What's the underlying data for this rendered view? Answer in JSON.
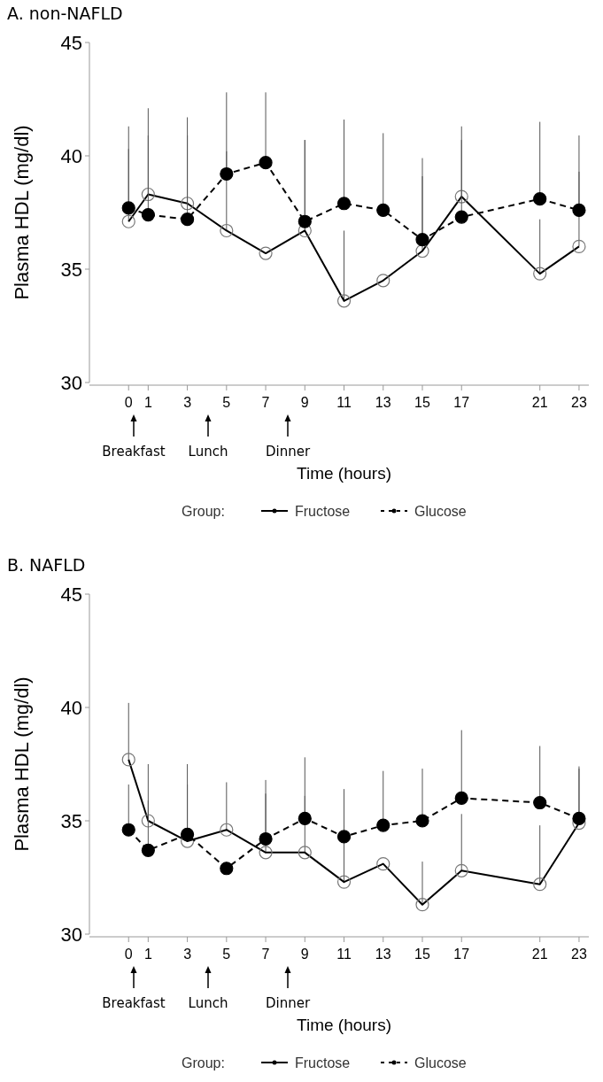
{
  "chart_data": [
    {
      "type": "line",
      "title": "A. non-NAFLD",
      "xlabel": "Time (hours)",
      "ylabel": "Plasma HDL (mg/dl)",
      "legend_title": "Group:",
      "legend": "bottom",
      "marker": "circle",
      "x": [
        0,
        1,
        3,
        5,
        7,
        9,
        11,
        13,
        15,
        17,
        21,
        23
      ],
      "xlim": [
        -2,
        23.5
      ],
      "xticks": [
        0,
        1,
        3,
        5,
        7,
        9,
        11,
        13,
        15,
        17,
        21,
        23
      ],
      "ylim": [
        30,
        45
      ],
      "yticks": [
        30,
        35,
        40,
        45
      ],
      "annotations": [
        "Breakfast",
        "Lunch",
        "Dinner"
      ],
      "series": [
        {
          "name": "Fructose",
          "color": "#000000",
          "line_style": "solid",
          "values": [
            37.1,
            38.3,
            37.9,
            36.7,
            35.7,
            36.7,
            33.6,
            34.5,
            35.8,
            38.2,
            34.8,
            36.0
          ],
          "errors": [
            [
              37.1,
              40.3
            ],
            [
              38.3,
              40.9
            ],
            [
              37.9,
              40.9
            ],
            [
              36.7,
              40.2
            ],
            null,
            [
              36.7,
              40.7
            ],
            [
              33.6,
              36.7
            ],
            null,
            [
              35.8,
              39.1
            ],
            [
              38.2,
              40.7
            ],
            [
              34.8,
              37.2
            ],
            [
              36.0,
              39.3
            ]
          ]
        },
        {
          "name": "Glucose",
          "color": "#000000",
          "line_style": "dashed",
          "values": [
            37.7,
            37.4,
            37.2,
            39.2,
            39.7,
            37.1,
            37.9,
            37.6,
            36.3,
            37.3,
            38.1,
            37.6
          ],
          "errors": [
            [
              37.7,
              41.3
            ],
            [
              37.4,
              42.1
            ],
            [
              37.2,
              41.7
            ],
            [
              39.2,
              42.8
            ],
            [
              39.7,
              42.8
            ],
            [
              37.1,
              40.7
            ],
            [
              37.9,
              41.6
            ],
            [
              37.6,
              41.0
            ],
            [
              36.3,
              39.9
            ],
            [
              37.3,
              41.3
            ],
            [
              38.1,
              41.5
            ],
            [
              37.6,
              40.9
            ]
          ]
        }
      ]
    },
    {
      "type": "line",
      "title": "B. NAFLD",
      "xlabel": "Time (hours)",
      "ylabel": "Plasma HDL (mg/dl)",
      "legend_title": "Group:",
      "legend": "bottom",
      "marker": "circle",
      "x": [
        0,
        1,
        3,
        5,
        7,
        9,
        11,
        13,
        15,
        17,
        21,
        23
      ],
      "xlim": [
        -2,
        23.5
      ],
      "xticks": [
        0,
        1,
        3,
        5,
        7,
        9,
        11,
        13,
        15,
        17,
        21,
        23
      ],
      "ylim": [
        30,
        45
      ],
      "yticks": [
        30,
        35,
        40,
        45
      ],
      "annotations": [
        "Breakfast",
        "Lunch",
        "Dinner"
      ],
      "series": [
        {
          "name": "Fructose",
          "color": "#000000",
          "line_style": "solid",
          "values": [
            37.7,
            35.0,
            34.1,
            34.6,
            33.6,
            33.6,
            32.3,
            33.1,
            31.3,
            32.8,
            32.2,
            34.9
          ],
          "errors": [
            [
              37.7,
              40.2
            ],
            [
              35.0,
              37.5
            ],
            [
              34.1,
              37.5
            ],
            [
              34.6,
              36.7
            ],
            [
              33.6,
              36.2
            ],
            [
              33.6,
              36.1
            ],
            [
              32.3,
              34.8
            ],
            null,
            [
              31.3,
              33.2
            ],
            [
              32.8,
              35.3
            ],
            [
              32.2,
              34.8
            ],
            [
              34.9,
              37.3
            ]
          ]
        },
        {
          "name": "Glucose",
          "color": "#000000",
          "line_style": "dashed",
          "values": [
            34.6,
            33.7,
            34.4,
            32.9,
            34.2,
            35.1,
            34.3,
            34.8,
            35.0,
            36.0,
            35.8,
            35.1
          ],
          "errors": [
            [
              34.6,
              36.6
            ],
            [
              33.7,
              35.9
            ],
            [
              34.4,
              36.6
            ],
            null,
            [
              34.2,
              36.8
            ],
            [
              35.1,
              37.8
            ],
            [
              34.3,
              36.4
            ],
            [
              34.8,
              37.2
            ],
            [
              35.0,
              37.3
            ],
            [
              36.0,
              39.0
            ],
            [
              35.8,
              38.3
            ],
            [
              35.1,
              37.4
            ]
          ]
        }
      ]
    }
  ]
}
